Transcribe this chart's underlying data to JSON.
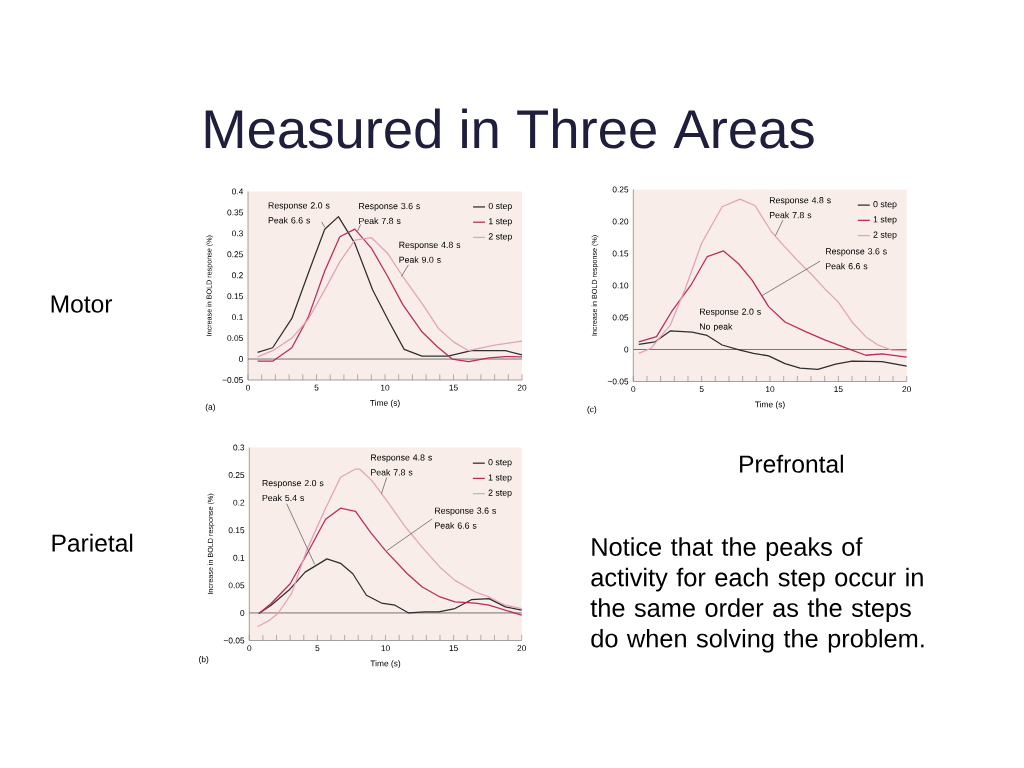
{
  "chart_data": [
    {
      "type": "other",
      "title": "Measured in Three Areas"
    },
    {
      "type": "line",
      "title": "Motor",
      "xlabel": "Time (s)",
      "ylabel": "Increase in BOLD response (%)",
      "xlim": [
        0,
        20
      ],
      "ylim": [
        -0.05,
        0.4
      ],
      "xticks": [
        0,
        {
          "value": 1,
          "label": null
        },
        {
          "value": 2,
          "label": null
        },
        {
          "value": 3,
          "label": null
        },
        {
          "value": 4,
          "label": null
        },
        5,
        {
          "value": 6,
          "label": null
        },
        {
          "value": 7,
          "label": null
        },
        {
          "value": 8,
          "label": null
        },
        {
          "value": 9,
          "label": null
        },
        10,
        {
          "value": 11,
          "label": null
        },
        {
          "value": 12,
          "label": null
        },
        {
          "value": 13,
          "label": null
        },
        {
          "value": 14,
          "label": null
        },
        15,
        {
          "value": 16,
          "label": null
        },
        {
          "value": 17,
          "label": null
        },
        {
          "value": 18,
          "label": null
        },
        {
          "value": 19,
          "label": null
        },
        20
      ],
      "yticks": [
        {
          "value": -0.05,
          "label": "−0.05"
        },
        0,
        0.05,
        0.1,
        0.15,
        0.2,
        0.25,
        0.3,
        0.35,
        0.4
      ],
      "legend": "top right",
      "ref_lines": [
        {
          "axis": "y",
          "value": 0,
          "color": "#555555"
        }
      ],
      "annotations": [
        {
          "text": "Response 2.0 s Peak 6.6 s",
          "x": 5.6,
          "y": 0.315
        },
        {
          "text": "Response 3.6 s Peak 7.8 s",
          "x": 8.0,
          "y": 0.305
        },
        {
          "text": "Response 4.8 s Peak 9.0 s",
          "x": 11.2,
          "y": 0.197
        },
        "(a)"
      ],
      "series": [
        {
          "name": "0 step",
          "color": "#2e2e2e",
          "x": [
            0.7,
            1.8,
            3.2,
            4.4,
            5.6,
            6.6,
            7.8,
            9.1,
            10.3,
            11.4,
            12.7,
            14.6,
            16.3,
            18.8,
            20
          ],
          "values": [
            0.016,
            0.027,
            0.097,
            0.205,
            0.31,
            0.34,
            0.276,
            0.165,
            0.089,
            0.023,
            0.007,
            0.007,
            0.02,
            0.02,
            0.01
          ]
        },
        {
          "name": "1 step",
          "color": "#bb2a5e",
          "x": [
            0.7,
            1.8,
            3.2,
            4.4,
            5.6,
            6.7,
            7.8,
            9.0,
            10.2,
            11.3,
            12.7,
            13.8,
            14.9,
            16.1,
            17.6,
            18.8,
            20
          ],
          "values": [
            -0.005,
            -0.005,
            0.027,
            0.1,
            0.21,
            0.292,
            0.31,
            0.265,
            0.197,
            0.13,
            0.065,
            0.03,
            0.0,
            -0.006,
            0.003,
            0.006,
            0.005
          ]
        },
        {
          "name": "2 step",
          "color": "#e2a3b7",
          "x": [
            0.7,
            1.8,
            3.2,
            4.4,
            5.6,
            6.7,
            7.8,
            9.0,
            10.2,
            11.3,
            12.7,
            13.9,
            15.0,
            16.1,
            18.0,
            20
          ],
          "values": [
            0.005,
            0.02,
            0.05,
            0.095,
            0.165,
            0.232,
            0.284,
            0.29,
            0.252,
            0.197,
            0.133,
            0.073,
            0.041,
            0.02,
            0.033,
            0.043
          ]
        }
      ]
    },
    {
      "type": "line",
      "title": "Prefrontal",
      "xlabel": "Time (s)",
      "ylabel": "Increase in BOLD response (%)",
      "xlim": [
        0,
        20
      ],
      "ylim": [
        -0.05,
        0.25
      ],
      "xticks": [
        0,
        {
          "value": 1,
          "label": null
        },
        {
          "value": 2,
          "label": null
        },
        {
          "value": 3,
          "label": null
        },
        {
          "value": 4,
          "label": null
        },
        5,
        {
          "value": 6,
          "label": null
        },
        {
          "value": 7,
          "label": null
        },
        {
          "value": 8,
          "label": null
        },
        {
          "value": 9,
          "label": null
        },
        10,
        {
          "value": 11,
          "label": null
        },
        {
          "value": 12,
          "label": null
        },
        {
          "value": 13,
          "label": null
        },
        {
          "value": 14,
          "label": null
        },
        15,
        {
          "value": 16,
          "label": null
        },
        {
          "value": 17,
          "label": null
        },
        {
          "value": 18,
          "label": null
        },
        {
          "value": 19,
          "label": null
        },
        20
      ],
      "yticks": [
        {
          "value": -0.05,
          "label": "−0.05"
        },
        0,
        0.05,
        {
          "value": 0.1,
          "label": "0.10"
        },
        0.15,
        {
          "value": 0.2,
          "label": "0.20"
        },
        0.25
      ],
      "legend": "top right",
      "ref_lines": [
        {
          "axis": "y",
          "value": 0,
          "color": "#555555"
        }
      ],
      "annotations": [
        {
          "text": "Response 4.8 s Peak 7.8 s",
          "x": 10.4,
          "y": 0.178
        },
        {
          "text": "Response 3.6 s Peak 6.6 s",
          "x": 9.4,
          "y": 0.084
        },
        "Response 2.0 s No peak",
        "(c)"
      ],
      "series": [
        {
          "name": "0 step",
          "color": "#2e2e2e",
          "x": [
            0.4,
            1.6,
            2.7,
            4.3,
            5.4,
            6.5,
            7.8,
            8.8,
            9.9,
            11.1,
            12.2,
            13.5,
            14.8,
            16.0,
            18.2,
            20
          ],
          "values": [
            0.008,
            0.012,
            0.029,
            0.027,
            0.022,
            0.007,
            -0.001,
            -0.006,
            -0.01,
            -0.022,
            -0.029,
            -0.031,
            -0.023,
            -0.018,
            -0.019,
            -0.026
          ]
        },
        {
          "name": "1 step",
          "color": "#bb2a5e",
          "x": [
            0.4,
            1.7,
            2.8,
            4.2,
            5.4,
            6.6,
            7.7,
            8.7,
            9.9,
            11.1,
            12.6,
            14.0,
            15.5,
            17.0,
            18.2,
            20
          ],
          "values": [
            0.012,
            0.02,
            0.059,
            0.1,
            0.145,
            0.154,
            0.134,
            0.108,
            0.067,
            0.043,
            0.028,
            0.015,
            0.003,
            -0.009,
            -0.007,
            -0.012
          ]
        },
        {
          "name": "2 step",
          "color": "#e2a3b7",
          "x": [
            0.4,
            1.3,
            2.7,
            3.8,
            5.0,
            6.5,
            7.8,
            8.9,
            10.1,
            11.1,
            12.1,
            13.1,
            14.0,
            15.0,
            16.0,
            17.0,
            17.9,
            18.9,
            20
          ],
          "values": [
            -0.006,
            0.002,
            0.038,
            0.095,
            0.166,
            0.223,
            0.235,
            0.225,
            0.184,
            0.16,
            0.137,
            0.116,
            0.095,
            0.074,
            0.043,
            0.02,
            0.007,
            -0.001,
            -0.002
          ]
        }
      ]
    },
    {
      "type": "line",
      "title": "Parietal",
      "xlabel": "Time (s)",
      "ylabel": "Increase in BOLD response (%)",
      "xlim": [
        0,
        20
      ],
      "ylim": [
        -0.05,
        0.3
      ],
      "xticks": [
        0,
        {
          "value": 1,
          "label": null
        },
        {
          "value": 2,
          "label": null
        },
        {
          "value": 3,
          "label": null
        },
        {
          "value": 4,
          "label": null
        },
        5,
        {
          "value": 6,
          "label": null
        },
        {
          "value": 7,
          "label": null
        },
        {
          "value": 8,
          "label": null
        },
        {
          "value": 9,
          "label": null
        },
        10,
        {
          "value": 11,
          "label": null
        },
        {
          "value": 12,
          "label": null
        },
        {
          "value": 13,
          "label": null
        },
        {
          "value": 14,
          "label": null
        },
        15,
        {
          "value": 16,
          "label": null
        },
        {
          "value": 17,
          "label": null
        },
        {
          "value": 18,
          "label": null
        },
        {
          "value": 19,
          "label": null
        },
        20
      ],
      "yticks": [
        {
          "value": -0.05,
          "label": "−0.05"
        },
        0,
        0.05,
        0.1,
        0.15,
        0.2,
        0.25,
        0.3
      ],
      "legend": "top right",
      "ref_lines": [
        {
          "axis": "y",
          "value": 0,
          "color": "#555555"
        }
      ],
      "annotations": [
        {
          "text": "Response 4.8 s Peak 7.8 s",
          "x": 9.7,
          "y": 0.216
        },
        {
          "text": "Response 2.0 s Peak 5.4 s",
          "x": 4.8,
          "y": 0.088
        },
        {
          "text": "Response 3.6 s Peak 6.6 s",
          "x": 10.1,
          "y": 0.113
        },
        "(b)"
      ],
      "series": [
        {
          "name": "0 step",
          "color": "#2e2e2e",
          "x": [
            0.7,
            1.6,
            2.9,
            4.1,
            5.7,
            6.7,
            7.6,
            8.6,
            9.7,
            10.7,
            11.7,
            12.9,
            13.9,
            15.1,
            16.3,
            17.6,
            18.8,
            20
          ],
          "values": [
            -0.001,
            0.014,
            0.041,
            0.074,
            0.098,
            0.09,
            0.071,
            0.032,
            0.018,
            0.014,
            0.0,
            0.002,
            0.002,
            0.008,
            0.024,
            0.026,
            0.011,
            0.005
          ]
        },
        {
          "name": "1 step",
          "color": "#bb2a5e",
          "x": [
            0.7,
            1.6,
            3.0,
            4.3,
            5.6,
            6.7,
            7.8,
            8.9,
            10.0,
            11.6,
            12.7,
            14.0,
            15.1,
            16.6,
            17.6,
            18.8,
            20
          ],
          "values": [
            -0.001,
            0.017,
            0.053,
            0.11,
            0.17,
            0.19,
            0.184,
            0.146,
            0.113,
            0.071,
            0.047,
            0.029,
            0.02,
            0.018,
            0.014,
            0.005,
            -0.004
          ]
        },
        {
          "name": "2 step",
          "color": "#e2a3b7",
          "x": [
            0.6,
            1.5,
            2.1,
            3.1,
            4.2,
            5.6,
            6.7,
            7.8,
            8.1,
            9.0,
            10.2,
            11.4,
            12.7,
            14.0,
            15.1,
            16.6,
            17.6,
            18.8,
            20
          ],
          "values": [
            -0.025,
            -0.013,
            -0.001,
            0.035,
            0.113,
            0.19,
            0.246,
            0.261,
            0.261,
            0.24,
            0.2,
            0.158,
            0.119,
            0.083,
            0.059,
            0.038,
            0.029,
            0.014,
            0.008
          ]
        }
      ]
    },
    {
      "type": "other",
      "annotations": [
        "Notice that the peaks of activity for each step occur in the same order as the steps do when solving the problem."
      ]
    }
  ]
}
